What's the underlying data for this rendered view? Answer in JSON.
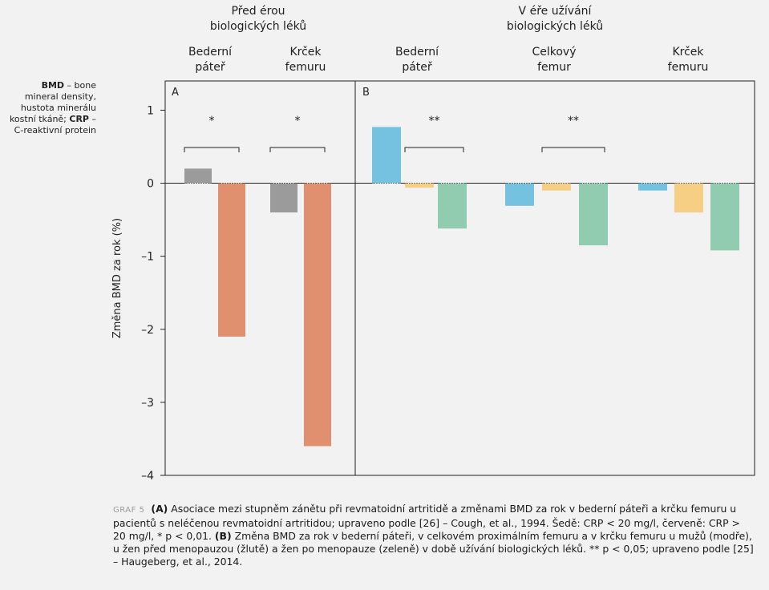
{
  "abbreviations": {
    "bmd_term": "BMD",
    "bmd_def": " – bone mineral density, hustota minerálu kostní tkáně; ",
    "crp_term": "CRP",
    "crp_def": " – C-reaktivní protein"
  },
  "caption": {
    "label": "GRAF 5",
    "a_open": "(",
    "a_letter": "A",
    "a_close": ")",
    "part_a": " Asociace mezi stupněm zánětu při revmatoidní artritidě a změnami BMD za rok v bederní páteři a krčku femuru u pacientů s neléčenou revmatoidní artritidou; upraveno podle [26] – Cough, et al., 1994. Šedě: CRP < 20 mg/l, červeně: CRP > 20 mg/l, * p < 0,01. ",
    "b_open": "(",
    "b_letter": "B",
    "b_close": ")",
    "part_b": " Změna BMD za rok v bederní páteři, v celkovém proximálním femuru a v krčku femuru u mužů (modře), u žen před menopauzou (žlutě) a žen po menopauze (zeleně) v době užívání biologických léků. ** p < 0,05; upraveno podle [25] – Haugeberg, et al., 2014."
  },
  "chart_data": {
    "type": "bar",
    "ylabel": "Změna BMD za rok (%)",
    "ylim": [
      -4,
      1.4
    ],
    "yticks": [
      1,
      0,
      -1,
      -2,
      -3,
      -4
    ],
    "ytick_labels": [
      "1",
      "0",
      "–1",
      "–2",
      "–3",
      "–4"
    ],
    "panels": [
      {
        "id": "A",
        "label": "A",
        "era_title": [
          "Před érou",
          "biologických léků"
        ],
        "groups": [
          {
            "label": [
              "Bederní",
              "páteř"
            ],
            "significance": "*",
            "bars": [
              {
                "value": 0.2,
                "color": "#9b9b9b"
              },
              {
                "value": -2.1,
                "color": "#e0906f"
              }
            ]
          },
          {
            "label": [
              "Krček",
              "femuru"
            ],
            "significance": "*",
            "bars": [
              {
                "value": -0.4,
                "color": "#9b9b9b"
              },
              {
                "value": -3.6,
                "color": "#e0906f"
              }
            ]
          }
        ]
      },
      {
        "id": "B",
        "label": "B",
        "era_title": [
          "V éře užívání",
          "biologických léků"
        ],
        "groups": [
          {
            "label": [
              "Bederní",
              "páteř"
            ],
            "significance": "**",
            "bars": [
              {
                "value": 0.77,
                "color": "#74c2df"
              },
              {
                "value": -0.06,
                "color": "#f6cf85"
              },
              {
                "value": -0.62,
                "color": "#91ccb1"
              }
            ]
          },
          {
            "label": [
              "Celkový",
              "femur"
            ],
            "significance": "**",
            "bars": [
              {
                "value": -0.31,
                "color": "#74c2df"
              },
              {
                "value": -0.1,
                "color": "#f6cf85"
              },
              {
                "value": -0.85,
                "color": "#91ccb1"
              }
            ]
          },
          {
            "label": [
              "Krček",
              "femuru"
            ],
            "significance": "",
            "bars": [
              {
                "value": -0.1,
                "color": "#74c2df"
              },
              {
                "value": -0.4,
                "color": "#f6cf85"
              },
              {
                "value": -0.92,
                "color": "#91ccb1"
              }
            ]
          }
        ]
      }
    ]
  }
}
